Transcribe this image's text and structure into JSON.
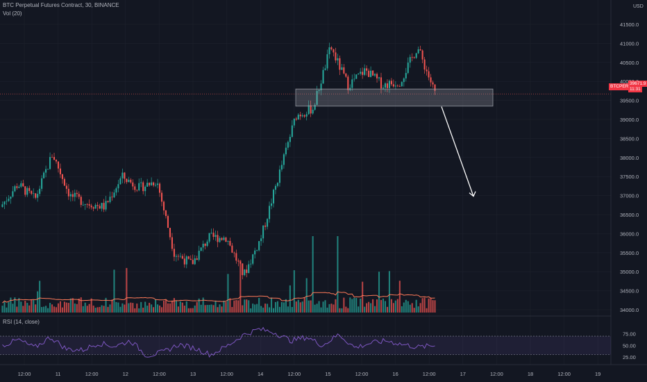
{
  "header": {
    "symbol_line": "BTC Perpetual Futures Contract, 30, BINANCE",
    "indicator_vol": "Vol (20)",
    "indicator_rsi": "RSI (14, close)"
  },
  "axis": {
    "currency": "USD",
    "price_ticks": [
      "41500.0",
      "41000.0",
      "40500.0",
      "40000.0",
      "39500.0",
      "39000.0",
      "38500.0",
      "38000.0",
      "37500.0",
      "37000.0",
      "36500.0",
      "36000.0",
      "35500.0",
      "35000.0",
      "34500.0",
      "34000.0"
    ],
    "rsi_ticks": [
      "75.00",
      "50.00",
      "25.00"
    ],
    "time_ticks": [
      "12:00",
      "11",
      "12:00",
      "12",
      "12:00",
      "13",
      "12:00",
      "14",
      "12:00",
      "15",
      "12:00",
      "16",
      "12:00",
      "17",
      "12:00",
      "18",
      "12:00",
      "19"
    ]
  },
  "current": {
    "symbol": "BTCPERP",
    "price": "39671.9",
    "countdown": "11:31"
  },
  "colors": {
    "up": "#26a69a",
    "down": "#ef5350",
    "background": "#131722",
    "rsi_line": "#7e57c2",
    "volume_ma": "#ff7a59",
    "annotation": "#ffffff"
  },
  "chart_data": {
    "type": "candlestick",
    "price_range": [
      34000,
      41700
    ],
    "rsi_range": [
      0,
      100
    ],
    "rsi_bands": [
      30,
      70
    ],
    "current_price": 39671.9,
    "close_path": [
      {
        "t": "10 06:00",
        "p": 36700
      },
      {
        "t": "10 12:00",
        "p": 37300
      },
      {
        "t": "10 18:00",
        "p": 36900
      },
      {
        "t": "11 00:00",
        "p": 38100
      },
      {
        "t": "11 06:00",
        "p": 37000
      },
      {
        "t": "11 12:00",
        "p": 36800
      },
      {
        "t": "11 18:00",
        "p": 36700
      },
      {
        "t": "12 00:00",
        "p": 37500
      },
      {
        "t": "12 06:00",
        "p": 37200
      },
      {
        "t": "12 12:00",
        "p": 37400
      },
      {
        "t": "12 18:00",
        "p": 35500
      },
      {
        "t": "13 00:00",
        "p": 35200
      },
      {
        "t": "13 06:00",
        "p": 35900
      },
      {
        "t": "13 12:00",
        "p": 35900
      },
      {
        "t": "13 18:00",
        "p": 34900
      },
      {
        "t": "14 00:00",
        "p": 35900
      },
      {
        "t": "14 06:00",
        "p": 37500
      },
      {
        "t": "14 12:00",
        "p": 39100
      },
      {
        "t": "14 18:00",
        "p": 39300
      },
      {
        "t": "15 00:00",
        "p": 40900
      },
      {
        "t": "15 06:00",
        "p": 39900
      },
      {
        "t": "15 12:00",
        "p": 40300
      },
      {
        "t": "15 18:00",
        "p": 39900
      },
      {
        "t": "16 00:00",
        "p": 40000
      },
      {
        "t": "16 06:00",
        "p": 40900
      },
      {
        "t": "16 12:00",
        "p": 39700
      }
    ],
    "rsi_path": [
      50,
      62,
      45,
      68,
      42,
      40,
      55,
      48,
      60,
      28,
      35,
      52,
      44,
      30,
      48,
      72,
      85,
      78,
      60,
      68,
      50,
      74,
      45,
      55,
      60,
      52,
      46,
      50
    ],
    "annotations": [
      {
        "type": "rectangle",
        "label": "resistance zone",
        "price_top": 39800,
        "price_bottom": 39350
      },
      {
        "type": "arrow",
        "direction": "down",
        "from_price": 39300,
        "to_price": 37000
      }
    ]
  }
}
